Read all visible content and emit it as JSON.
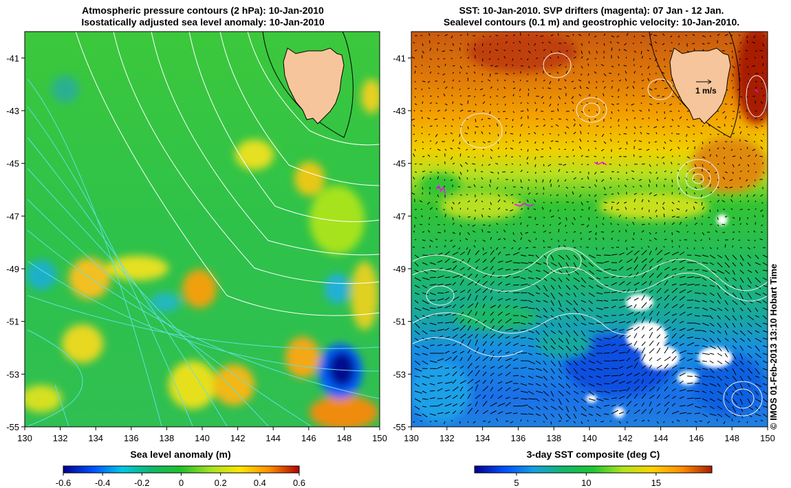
{
  "left_panel": {
    "title_line1": "Atmospheric pressure contours (2 hPa): 10-Jan-2010",
    "title_line2": "Isostatically adjusted sea level anomaly: 10-Jan-2010",
    "colorbar_label": "Sea level anomaly (m)",
    "colorbar_ticks": [
      "-0.6",
      "-0.4",
      "-0.2",
      "0",
      "0.2",
      "0.4",
      "0.6"
    ],
    "colorbar_range": [
      -0.6,
      0.6
    ]
  },
  "right_panel": {
    "title_line1": "SST: 10-Jan-2010. SVP drifters (magenta): 07 Jan - 12 Jan.",
    "title_line2": "Sealevel contours (0.1 m) and geostrophic velocity: 10-Jan-2010.",
    "colorbar_label": "3-day SST composite (deg C)",
    "colorbar_ticks": [
      "5",
      "10",
      "15"
    ],
    "colorbar_range": [
      2,
      19
    ],
    "velocity_scale_label": "1 m/s"
  },
  "axes": {
    "lon_ticks": [
      "130",
      "132",
      "134",
      "136",
      "138",
      "140",
      "142",
      "144",
      "146",
      "148",
      "150"
    ],
    "lat_ticks": [
      "-41",
      "-43",
      "-45",
      "-47",
      "-49",
      "-51",
      "-53",
      "-55"
    ],
    "lon_range": [
      130,
      150
    ],
    "lat_range": [
      -55,
      -40
    ]
  },
  "credit": "© IMOS 01-Feb-2013 13:10 Hobart Time",
  "colors": {
    "land": "#f7c59b",
    "sla_colormap": [
      "#00008f",
      "#0050ff",
      "#00c8e6",
      "#11b86a",
      "#22c22a",
      "#a6e31f",
      "#ffe600",
      "#ff8c00",
      "#b40000"
    ],
    "sst_colormap": [
      "#00008f",
      "#0050ff",
      "#14a0e0",
      "#11b86a",
      "#1ec830",
      "#b0e41e",
      "#ffd200",
      "#ff8c00",
      "#a81f00"
    ],
    "drifters": "#ff00ff"
  }
}
